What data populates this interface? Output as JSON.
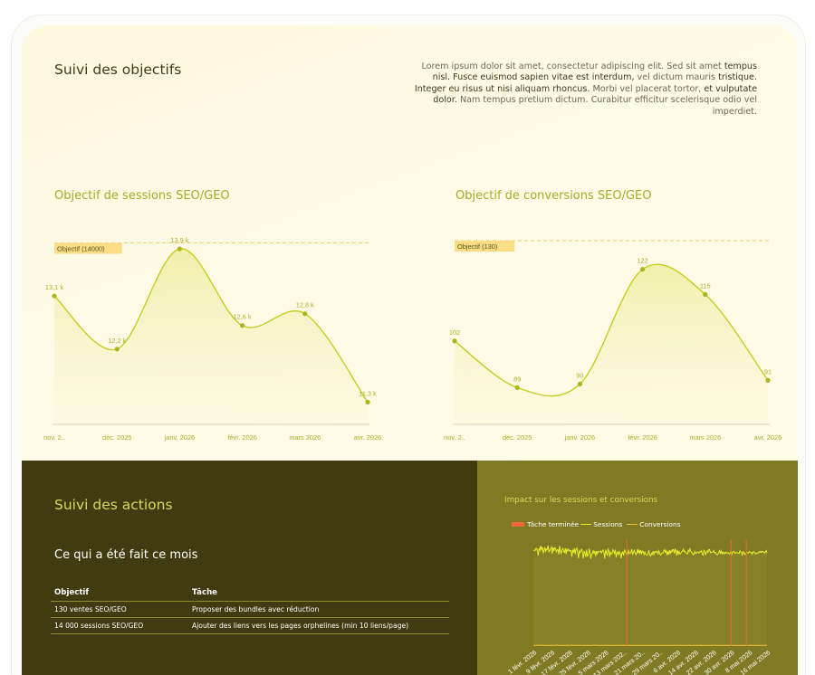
{
  "header": {
    "title": "Suivi des objectifs",
    "intro_parts": [
      {
        "text": "Lorem ipsum dolor sit amet, consectetur adipiscing elit. Sed sit amet ",
        "strong": false
      },
      {
        "text": "tempus nisl. Fusce euismod sapien vitae est interdum,",
        "strong": true
      },
      {
        "text": " vel dictum mauris ",
        "strong": false
      },
      {
        "text": "tristique. Integer eu risus ut nisi aliquam rhoncus.",
        "strong": true
      },
      {
        "text": " Morbi vel placerat tortor, ",
        "strong": false
      },
      {
        "text": "et vulputate dolor.",
        "strong": true
      },
      {
        "text": " Nam tempus pretium dictum. Curabitur efficitur scelerisque odio vel imperdiet.",
        "strong": false
      }
    ]
  },
  "colors": {
    "accent": "#a3ad26",
    "line": "#c5cd1e",
    "goal_tag": "#fadd85",
    "task_marker": "#f0683a",
    "dark_bg": "#403b10",
    "olive_bg": "#817a24"
  },
  "chart_data": [
    {
      "type": "area",
      "title": "Objectif de sessions SEO/GEO",
      "goal_label": "Objectif (14000)",
      "goal_value": 14000,
      "x": [
        "nov. 2..",
        "déc. 2025",
        "janv. 2026",
        "févr. 2026",
        "mars 2026",
        "avr. 2026"
      ],
      "values": [
        13100,
        12200,
        13900,
        12600,
        12800,
        11300
      ],
      "value_labels": [
        "13,1 k",
        "12,2 k",
        "13,9 k",
        "12,6 k",
        "12,8 k",
        "11,3 k"
      ],
      "ylim": [
        11000,
        14100
      ],
      "grid": false
    },
    {
      "type": "area",
      "title": "Objectif de conversions SEO/GEO",
      "goal_label": "Objectif (130)",
      "goal_value": 130,
      "x": [
        "nov. 2..",
        "déc. 2025",
        "janv. 2026",
        "févr. 2026",
        "mars 2026",
        "avr. 2026"
      ],
      "values": [
        102,
        89,
        90,
        122,
        115,
        91
      ],
      "value_labels": [
        "102",
        "89",
        "90",
        "122",
        "115",
        "91"
      ],
      "ylim": [
        80,
        131
      ],
      "grid": false
    },
    {
      "type": "line",
      "title": "Impact sur les sessions et conversions",
      "legend": [
        "Tâche terminée",
        "Sessions",
        "Conversions"
      ],
      "x_ticks": [
        "1 févr. 2026",
        "9 févr. 2026",
        "17 févr. 2026",
        "25 févr. 2026",
        "5 mars 2026",
        "13 mars 202..",
        "21 mars 20..",
        "29 mars 20..",
        "6 avr. 2026",
        "14 avr. 2026",
        "22 avr. 2026",
        "30 avr. 2026",
        "8 mai 2026",
        "16 mai 2026"
      ],
      "series": [
        {
          "name": "Sessions",
          "values": [
            441,
            440,
            439,
            449,
            448,
            439,
            416,
            450,
            440,
            460,
            444,
            455,
            427,
            439,
            454,
            436,
            447,
            444,
            462,
            433,
            439,
            446,
            455,
            425,
            454,
            437,
            452,
            450,
            433,
            443,
            443,
            421,
            460,
            437,
            426,
            443,
            449,
            439,
            428,
            450,
            423,
            445,
            438,
            445,
            437,
            438,
            439,
            411,
            442,
            430,
            450,
            422,
            444,
            451,
            432,
            404,
            437,
            429,
            441,
            445,
            429,
            403,
            435,
            428,
            410,
            443,
            413,
            417,
            444,
            435,
            401,
            423,
            425,
            440,
            424,
            437,
            413,
            437,
            425,
            435,
            433,
            435,
            437,
            428,
            435,
            442,
            430,
            402,
            440,
            434,
            416,
            446,
            437,
            410,
            432,
            422,
            425,
            443,
            437,
            426,
            442,
            407,
            427,
            434,
            418,
            434,
            423,
            404,
            429,
            432,
            416,
            441,
            435,
            428,
            419,
            420,
            439,
            427,
            426,
            430,
            445,
            422,
            427,
            440,
            432,
            420,
            426,
            446,
            426,
            442,
            427,
            441,
            422,
            436,
            435,
            421,
            432,
            422,
            420,
            417,
            428,
            440,
            420,
            414,
            426,
            421,
            436,
            421,
            434,
            430,
            436,
            435,
            421,
            438,
            429,
            418,
            423,
            428,
            427,
            437,
            442,
            431,
            439,
            418,
            435,
            421,
            441,
            426,
            438,
            432,
            444,
            443,
            425,
            445,
            439,
            416,
            441,
            424,
            434,
            422,
            428,
            434,
            437,
            446,
            433,
            436,
            429,
            424,
            423,
            440,
            434,
            447,
            437,
            429,
            429,
            419,
            423,
            435,
            425,
            427,
            433,
            432,
            427,
            434,
            433,
            438,
            423,
            418,
            440,
            436,
            418,
            433,
            438,
            430,
            443,
            444,
            429,
            431,
            431,
            433,
            439,
            429,
            431,
            424,
            420,
            421,
            431,
            438,
            426,
            438,
            425,
            432,
            424,
            430,
            425,
            432,
            429,
            427,
            429,
            423,
            428,
            438,
            421,
            432,
            432,
            435,
            426,
            427,
            431,
            429,
            427,
            426,
            438,
            433,
            430,
            419,
            434,
            431,
            420,
            424,
            430,
            429,
            427,
            434,
            432,
            428,
            431,
            423,
            433,
            433,
            431,
            424,
            425,
            428,
            427,
            433,
            431,
            435,
            430,
            436,
            433,
            432,
            427,
            432,
            439,
            428
          ]
        },
        {
          "name": "Conversions",
          "values": [
            3,
            3,
            3,
            4,
            3,
            3,
            3,
            3,
            3,
            3,
            3,
            4,
            3,
            3,
            3,
            3,
            3,
            3,
            4,
            3,
            3,
            3,
            3,
            3,
            3,
            3,
            3,
            3,
            3,
            4,
            3,
            3,
            3,
            3,
            3,
            3,
            3,
            3,
            3,
            3,
            3,
            3,
            4,
            3,
            3,
            3,
            3,
            3,
            3,
            3,
            3,
            3,
            3,
            3,
            3,
            3,
            3,
            3,
            3,
            3,
            3,
            3,
            3,
            3,
            3,
            3,
            3,
            3,
            3,
            3,
            3,
            3,
            3,
            3,
            3,
            3,
            3,
            3,
            3,
            3,
            3,
            3,
            3,
            3,
            3,
            3,
            3,
            3,
            3,
            3,
            3,
            3,
            3,
            3,
            3,
            3,
            3,
            3,
            3,
            3,
            3,
            3,
            3,
            3,
            3,
            3,
            3,
            3,
            3,
            3
          ]
        }
      ],
      "task_markers": [
        "13 mars 202..",
        "22 avr. 2026",
        "26 avr. 2026"
      ]
    }
  ],
  "actions": {
    "title": "Suivi des actions",
    "subtitle": "Ce qui a été fait ce mois",
    "table": {
      "headers": [
        "Objectif",
        "Tâche"
      ],
      "rows": [
        [
          "130 ventes SEO/GEO",
          "Proposer des bundles avec réduction"
        ],
        [
          "14 000 sessions SEO/GEO",
          "Ajouter des liens vers les pages orphelines (min 10 liens/page)"
        ]
      ]
    }
  }
}
